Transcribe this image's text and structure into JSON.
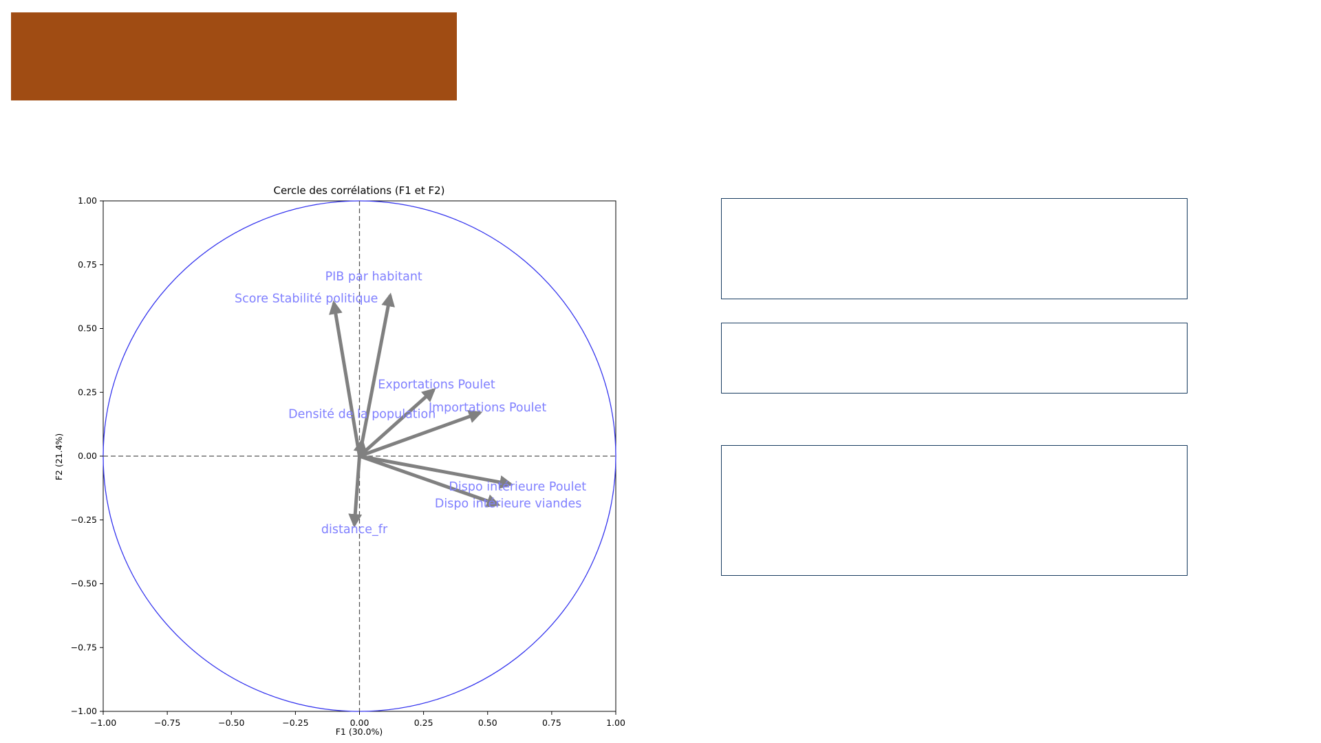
{
  "slide": {
    "header_color": "#a04c13",
    "box_border_color": "#163a5f"
  },
  "chart_data": {
    "type": "scatter",
    "title": "Cercle des corrélations (F1 et F2)",
    "xlabel": "F1 (30.0%)",
    "ylabel": "F2 (21.4%)",
    "xlim": [
      -1.0,
      1.0
    ],
    "ylim": [
      -1.0,
      1.0
    ],
    "xticks": [
      "−1.00",
      "−0.75",
      "−0.50",
      "−0.25",
      "0.00",
      "0.25",
      "0.50",
      "0.75",
      "1.00"
    ],
    "yticks": [
      "−1.00",
      "−0.75",
      "−0.50",
      "−0.25",
      "0.00",
      "0.25",
      "0.50",
      "0.75",
      "1.00"
    ],
    "circle_color": "#3333ee",
    "arrow_color": "#808080",
    "label_color": "#8080ff",
    "grid": false,
    "reference_lines": [
      0,
      0
    ],
    "variables": [
      {
        "name": "PIB par habitant",
        "x": 0.12,
        "y": 0.63
      },
      {
        "name": "Score Stabilité politique",
        "x": -0.1,
        "y": 0.6
      },
      {
        "name": "Exportations Poulet",
        "x": 0.29,
        "y": 0.26
      },
      {
        "name": "Importations Poulet",
        "x": 0.47,
        "y": 0.17
      },
      {
        "name": "Densité de la population",
        "x": 0.01,
        "y": 0.06
      },
      {
        "name": "Dispo intérieure Poulet",
        "x": 0.59,
        "y": -0.11
      },
      {
        "name": "Dispo intérieure viandes",
        "x": 0.54,
        "y": -0.19
      },
      {
        "name": "distance_fr",
        "x": -0.02,
        "y": -0.27
      }
    ]
  }
}
